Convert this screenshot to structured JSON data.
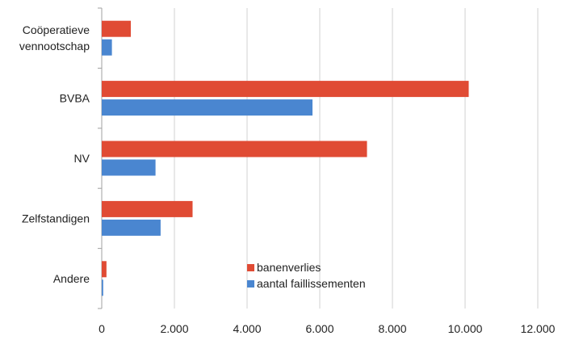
{
  "chart_data": {
    "type": "bar",
    "orientation": "horizontal",
    "categories": [
      "Coöperatieve vennootschap",
      "BVBA",
      "NV",
      "Zelfstandigen",
      "Andere"
    ],
    "category_label_lines": [
      [
        "Coöperatieve",
        "vennootschap"
      ],
      [
        "BVBA"
      ],
      [
        "NV"
      ],
      [
        "Zelfstandigen"
      ],
      [
        "Andere"
      ]
    ],
    "series": [
      {
        "name": "banenverlies",
        "color": "#e04b34",
        "values": [
          800,
          10100,
          7300,
          2500,
          130
        ]
      },
      {
        "name": "aantal faillissementen",
        "color": "#4a86d0",
        "values": [
          280,
          5800,
          1480,
          1620,
          40
        ]
      }
    ],
    "x_ticks": [
      0,
      2000,
      4000,
      6000,
      8000,
      10000,
      12000
    ],
    "x_tick_labels": [
      "0",
      "2.000",
      "4.000",
      "6.000",
      "8.000",
      "10.000",
      "12.000"
    ],
    "xlim": [
      0,
      12000
    ],
    "title": "",
    "xlabel": "",
    "ylabel": "",
    "grid": "vertical",
    "legend_position": "bottom-center-inside"
  }
}
